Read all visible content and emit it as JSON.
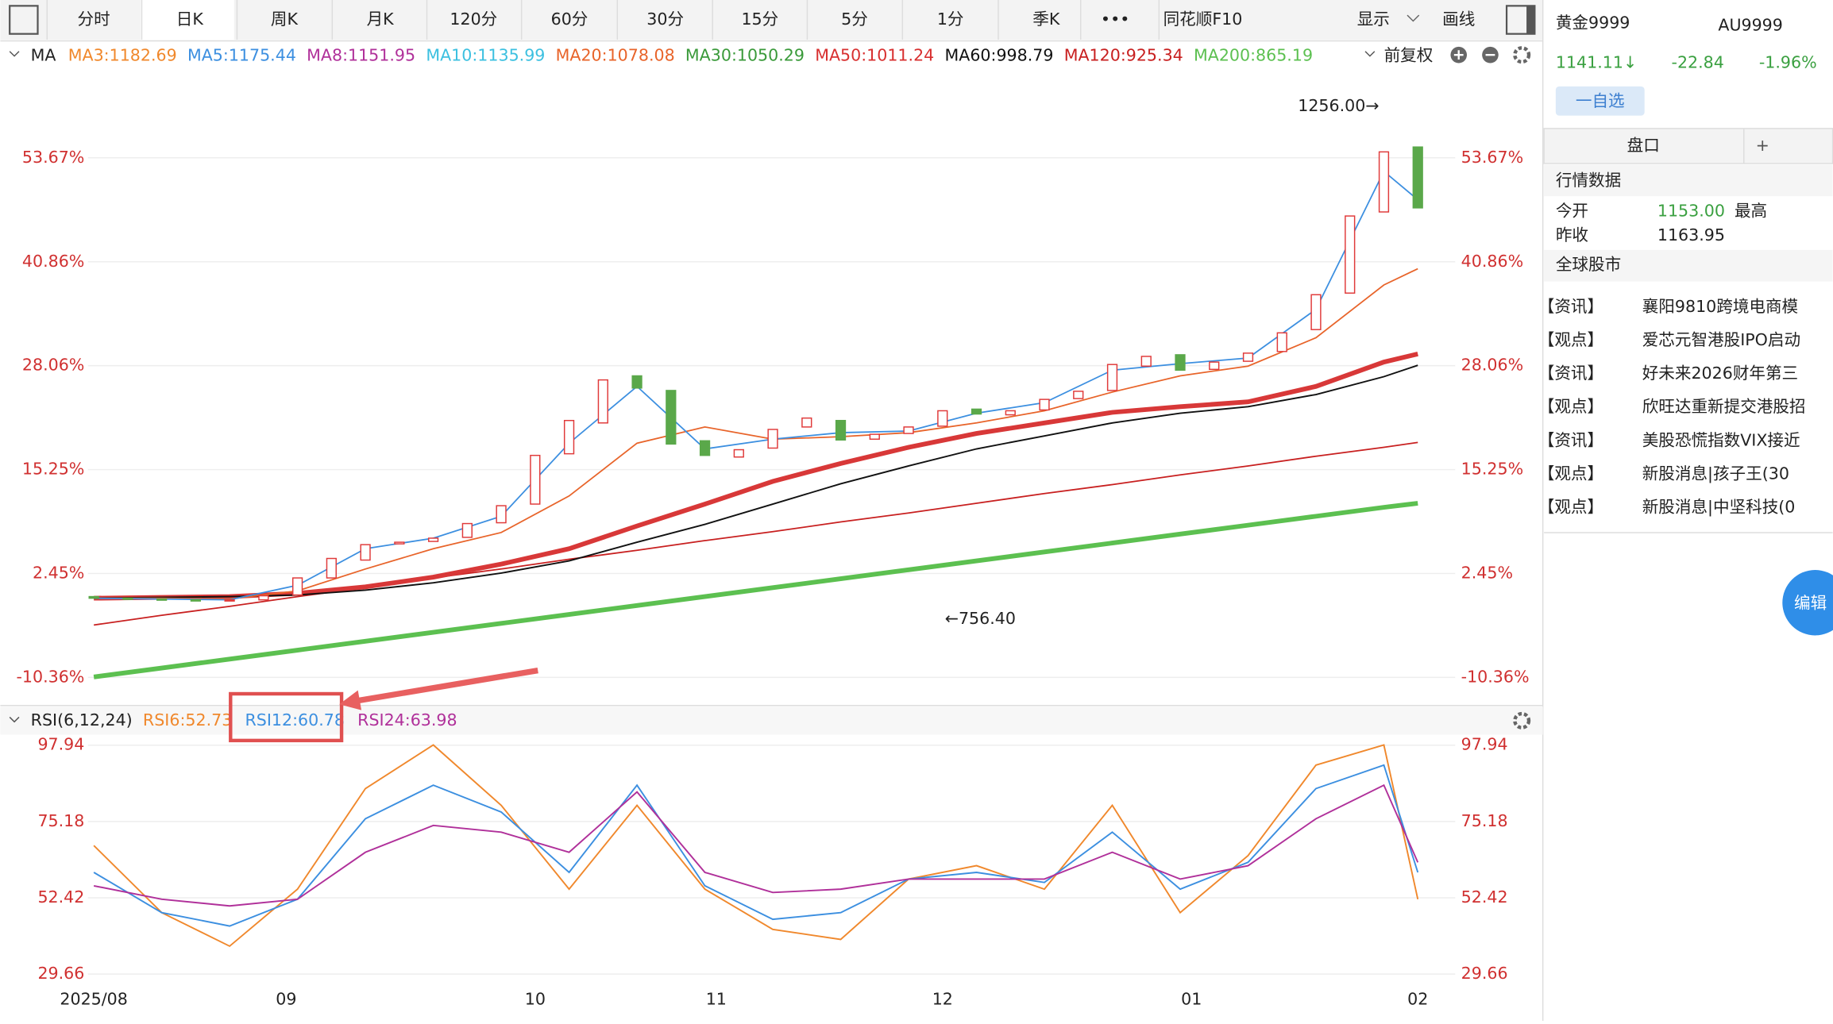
{
  "toolbar": {
    "tabs": [
      "分时",
      "日K",
      "周K",
      "月K",
      "120分",
      "60分",
      "30分",
      "15分",
      "5分",
      "1分",
      "季K",
      "•••",
      "同花顺F10"
    ],
    "display": "显示",
    "draw": "画线"
  },
  "chart_data": [
    {
      "type": "candlestick",
      "title": "MA",
      "adjust": "前复权",
      "legend": [
        {
          "text": "MA3:1182.69",
          "color": "#f0882c"
        },
        {
          "text": "MA5:1175.44",
          "color": "#3c8fe0"
        },
        {
          "text": "MA8:1151.95",
          "color": "#b0309a"
        },
        {
          "text": "MA10:1135.99",
          "color": "#3cc0e0"
        },
        {
          "text": "MA20:1078.08",
          "color": "#e8642a"
        },
        {
          "text": "MA30:1050.29",
          "color": "#3a9a3a"
        },
        {
          "text": "MA50:1011.24",
          "color": "#d83030"
        },
        {
          "text": "MA60:998.79",
          "color": "#111111"
        },
        {
          "text": "MA120:925.34",
          "color": "#c82020"
        },
        {
          "text": "MA200:865.19",
          "color": "#5cc050"
        }
      ],
      "x": [
        0,
        3,
        6,
        9,
        12,
        15,
        18,
        21,
        24,
        27,
        30,
        33,
        36,
        39,
        42,
        45,
        48,
        51,
        54,
        57,
        60,
        63,
        66,
        69,
        72,
        75,
        78,
        81,
        84,
        87,
        90,
        93,
        96,
        99,
        102,
        105,
        108,
        111,
        114,
        117
      ],
      "open": [
        -0.4,
        -0.6,
        -0.7,
        -0.8,
        -0.9,
        -0.8,
        -0.2,
        1.9,
        4.1,
        6.1,
        6.4,
        6.9,
        8.7,
        11.0,
        17.2,
        21.0,
        26.8,
        25.0,
        18.8,
        16.8,
        17.9,
        20.5,
        21.3,
        19.0,
        19.7,
        20.6,
        22.7,
        22.0,
        22.6,
        24.0,
        25.0,
        28.0,
        29.4,
        27.6,
        28.6,
        29.8,
        32.5,
        37.0,
        47.0,
        55.0
      ],
      "close": [
        -0.6,
        -0.7,
        -0.8,
        -0.9,
        -0.8,
        -0.3,
        1.9,
        4.3,
        6.0,
        6.3,
        6.8,
        8.6,
        10.8,
        17.0,
        21.3,
        26.3,
        25.3,
        18.4,
        17.0,
        17.7,
        20.2,
        21.6,
        18.9,
        19.6,
        20.5,
        22.5,
        22.1,
        22.5,
        23.9,
        24.9,
        28.2,
        29.2,
        27.5,
        28.5,
        29.6,
        32.1,
        36.8,
        46.5,
        54.4,
        47.5
      ],
      "up_color": "#e03a3a",
      "down_color": "#5aa84a",
      "line_x": [
        0,
        6,
        12,
        18,
        24,
        30,
        36,
        42,
        48,
        54,
        60,
        66,
        72,
        78,
        84,
        90,
        96,
        102,
        108,
        114,
        117
      ],
      "lines": [
        {
          "color": "#5cc050",
          "width": 4,
          "values": [
            -10.3,
            -9.2,
            -8.1,
            -7.0,
            -5.9,
            -4.8,
            -3.7,
            -2.6,
            -1.5,
            -0.4,
            0.7,
            1.8,
            2.9,
            4.0,
            5.1,
            6.2,
            7.3,
            8.4,
            9.5,
            10.6,
            11.1
          ]
        },
        {
          "color": "#c82020",
          "width": 1.2,
          "values": [
            -3.9,
            -2.7,
            -1.6,
            -0.4,
            0.7,
            1.9,
            3.0,
            4.2,
            5.3,
            6.5,
            7.6,
            8.8,
            9.9,
            11.1,
            12.3,
            13.4,
            14.6,
            15.7,
            16.9,
            18.0,
            18.6
          ]
        },
        {
          "color": "#d83838",
          "width": 4,
          "values": [
            -0.6,
            -0.5,
            -0.4,
            0,
            0.8,
            2.0,
            3.6,
            5.5,
            8.3,
            11.0,
            13.8,
            16.0,
            18.0,
            19.7,
            21.0,
            22.3,
            23.0,
            23.6,
            25.5,
            28.5,
            29.5
          ]
        },
        {
          "color": "#111111",
          "width": 1.3,
          "values": [
            -0.6,
            -0.5,
            -0.4,
            -0.2,
            0.4,
            1.3,
            2.5,
            4.0,
            6.3,
            8.5,
            11.0,
            13.5,
            15.7,
            17.8,
            19.4,
            21.0,
            22.2,
            23.0,
            24.5,
            26.7,
            28.1
          ]
        },
        {
          "color": "#e8642a",
          "width": 1.2,
          "values": [
            -0.6,
            -0.6,
            -0.7,
            0.3,
            3.0,
            5.5,
            7.5,
            12.0,
            18.5,
            20.5,
            19.0,
            19.3,
            19.8,
            21.0,
            22.5,
            24.8,
            26.8,
            28.0,
            31.5,
            38.0,
            40.0
          ]
        },
        {
          "color": "#3c8fe0",
          "width": 1.2,
          "values": [
            -0.6,
            -0.7,
            -0.8,
            1.0,
            5.5,
            6.8,
            9.5,
            18.5,
            25.5,
            17.8,
            19.0,
            19.8,
            20.0,
            22.2,
            23.5,
            27.5,
            28.3,
            29.0,
            35.0,
            52.0,
            48.5
          ]
        }
      ],
      "annotations": [
        {
          "text": "1256.00→",
          "x": 114,
          "y": 60.0
        },
        {
          "text": "←756.40",
          "x": 75,
          "y": -3.2
        }
      ],
      "xlim": [
        0,
        117
      ],
      "ylim": [
        -13.24,
        64.48
      ],
      "yticks": [
        {
          "value": -10.36,
          "label": "-10.36%"
        },
        {
          "value": 2.45,
          "label": "2.45%"
        },
        {
          "value": 15.25,
          "label": "15.25%"
        },
        {
          "value": 28.06,
          "label": "28.06%"
        },
        {
          "value": 40.86,
          "label": "40.86%"
        },
        {
          "value": 53.67,
          "label": "53.67%"
        }
      ],
      "grid": true
    },
    {
      "type": "line",
      "title": "RSI(6,12,24)",
      "x": [
        0,
        6,
        12,
        18,
        24,
        30,
        36,
        42,
        48,
        54,
        60,
        66,
        72,
        78,
        84,
        90,
        96,
        102,
        108,
        114,
        117
      ],
      "series": [
        {
          "name": "RSI6:52.73",
          "color": "#f0882c",
          "values": [
            68,
            48,
            38,
            55,
            85,
            98,
            80,
            55,
            80,
            55,
            43,
            40,
            58,
            62,
            55,
            80,
            48,
            65,
            92,
            98,
            52
          ]
        },
        {
          "name": "RSI12:60.78",
          "color": "#3c8fe0",
          "values": [
            60,
            48,
            44,
            52,
            76,
            86,
            78,
            60,
            86,
            56,
            46,
            48,
            58,
            60,
            57,
            72,
            55,
            63,
            85,
            92,
            60
          ]
        },
        {
          "name": "RSI24:63.98",
          "color": "#b0309a",
          "values": [
            56,
            52,
            50,
            52,
            66,
            74,
            72,
            66,
            84,
            60,
            54,
            55,
            58,
            58,
            58,
            66,
            58,
            62,
            76,
            86,
            63
          ]
        }
      ],
      "xlim": [
        0,
        117
      ],
      "ylim": [
        25.83,
        101.42
      ],
      "yticks": [
        29.66,
        52.42,
        75.18,
        97.94
      ],
      "xticks": [
        {
          "value": 0,
          "label": "2025/08"
        },
        {
          "value": 17,
          "label": "09"
        },
        {
          "value": 39,
          "label": "10"
        },
        {
          "value": 55,
          "label": "11"
        },
        {
          "value": 75,
          "label": "12"
        },
        {
          "value": 97,
          "label": "01"
        },
        {
          "value": 117,
          "label": "02"
        }
      ],
      "grid": true
    }
  ],
  "quote": {
    "name": "黄金9999",
    "code": "AU9999",
    "price": "1141.11↓",
    "change": "-22.84",
    "pct": "-1.96%",
    "watch": "一自选",
    "tab": "盘口",
    "plus": "+",
    "section": "行情数据",
    "open_label": "今开",
    "open": "1153.00",
    "high_label": "最高",
    "prev_label": "昨收",
    "prev": "1163.95",
    "market": "全球股市",
    "edit": "编辑"
  },
  "news": [
    {
      "tag": "【资讯】",
      "text": "襄阳9810跨境电商模"
    },
    {
      "tag": "【观点】",
      "text": "爱芯元智港股IPO启动"
    },
    {
      "tag": "【资讯】",
      "text": "好未来2026财年第三"
    },
    {
      "tag": "【观点】",
      "text": "欣旺达重新提交港股招"
    },
    {
      "tag": "【资讯】",
      "text": "美股恐慌指数VIX接近"
    },
    {
      "tag": "【观点】",
      "text": "新股消息|孩子王(30"
    },
    {
      "tag": "【观点】",
      "text": "新股消息|中坚科技(0"
    }
  ]
}
